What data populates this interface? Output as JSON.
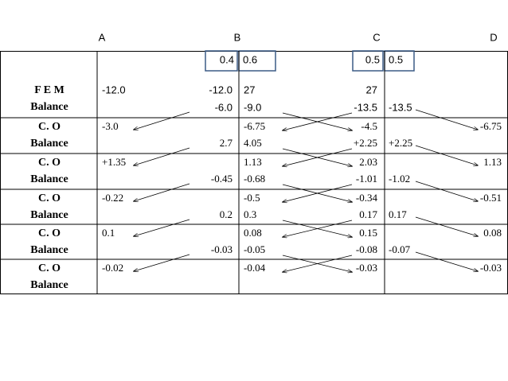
{
  "columns": [
    "A",
    "B",
    "C",
    "D"
  ],
  "factors": [
    "0.4",
    "0.6",
    "0.5",
    "0.5"
  ],
  "rows": [
    {
      "label": [
        "F E M",
        "Balance"
      ],
      "lines": [
        [
          "-12.0",
          "-12.0",
          "27",
          "27",
          null,
          null
        ],
        [
          null,
          "-6.0",
          "-9.0",
          "-13.5",
          "-13.5",
          null
        ]
      ]
    },
    {
      "label": [
        "C. O",
        "Balance"
      ],
      "lines": [
        [
          "-3.0",
          null,
          "-6.75",
          "-4.5",
          null,
          "-6.75"
        ],
        [
          null,
          "2.7",
          "4.05",
          "+2.25",
          "+2.25",
          null
        ]
      ]
    },
    {
      "label": [
        "C. O",
        "Balance"
      ],
      "lines": [
        [
          "+1.35",
          null,
          "1.13",
          "2.03",
          null,
          "1.13"
        ],
        [
          null,
          "-0.45",
          "-0.68",
          "-1.01",
          "-1.02",
          null
        ]
      ]
    },
    {
      "label": [
        "C. O",
        "Balance"
      ],
      "lines": [
        [
          "-0.22",
          null,
          "-0.5",
          "-0.34",
          null,
          "-0.51"
        ],
        [
          null,
          "0.2",
          "0.3",
          "0.17",
          "0.17",
          null
        ]
      ]
    },
    {
      "label": [
        "C. O",
        "Balance"
      ],
      "lines": [
        [
          "0.1",
          null,
          "0.08",
          "0.15",
          null,
          "0.08"
        ],
        [
          null,
          "-0.03",
          "-0.05",
          "-0.08",
          "-0.07",
          null
        ]
      ]
    },
    {
      "label": [
        "C. O",
        "Balance"
      ],
      "lines": [
        [
          "-0.02",
          null,
          "-0.04",
          "-0.03",
          null,
          "-0.03"
        ],
        [
          null,
          null,
          null,
          null,
          null,
          null
        ]
      ]
    }
  ]
}
